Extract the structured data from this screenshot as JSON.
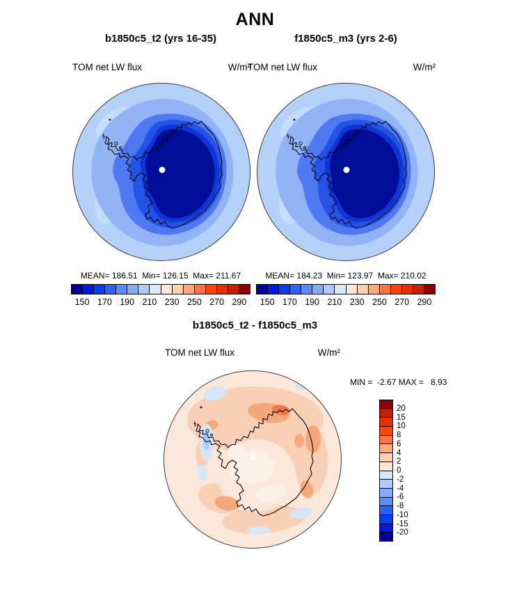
{
  "title": "ANN",
  "panels": [
    {
      "subtitle": "b1850c5_t2 (yrs 16-35)",
      "variable": "TOM net LW flux",
      "units": "W/m²",
      "stats": "MEAN= 186.51  Min= 126.15  Max= 211.67"
    },
    {
      "subtitle": "f1850c5_m3 (yrs 2-6)",
      "variable": "TOM net LW flux",
      "units": "W/m²",
      "stats": "MEAN= 184.23  Min= 123.97  Max= 210.02"
    }
  ],
  "diff": {
    "title": "b1850c5_t2 - f1850c5_m3",
    "variable": "TOM net LW flux",
    "units": "W/m²",
    "minmax": "MIN =  -2.67 MAX =   8.93"
  },
  "colorbar": {
    "orientation": "horizontal",
    "tick_labels": [
      "150",
      "170",
      "190",
      "210",
      "230",
      "250",
      "270",
      "290"
    ],
    "colors": [
      "#000099",
      "#0018E0",
      "#0040F0",
      "#2963FF",
      "#5C8AFF",
      "#85ABFF",
      "#ADCBFF",
      "#D8E8FF",
      "#FFE8D8",
      "#FFD0B0",
      "#FFA878",
      "#FF7245",
      "#FF4500",
      "#E63000",
      "#C22000",
      "#8C0000"
    ]
  },
  "diff_colorbar": {
    "orientation": "vertical",
    "tick_labels": [
      "20",
      "15",
      "10",
      "8",
      "6",
      "4",
      "2",
      "0",
      "-2",
      "-4",
      "-6",
      "-8",
      "-10",
      "-15",
      "-20"
    ]
  },
  "chart_data": [
    {
      "type": "heatmap",
      "subtype": "filled-contour-map",
      "projection": "south polar stereographic (Antarctica)",
      "title": "b1850c5_t2 (yrs 16-35)",
      "variable": "TOM net LW flux",
      "units": "W/m²",
      "stats": {
        "mean": 186.51,
        "min": 126.15,
        "max": 211.67
      },
      "contour_levels": [
        150,
        160,
        170,
        180,
        190,
        200,
        210,
        220,
        230,
        240,
        250,
        260,
        270,
        280,
        290
      ],
      "tick_labels": [
        150,
        170,
        190,
        210,
        230,
        250,
        270,
        290
      ],
      "palette": "blue-to-red, 16 levels",
      "legend_position": "below",
      "notes": "Low values (dark blue, ~130-170) over the Antarctic interior; higher values (light blue, ~210) over surrounding ocean; white dot marks the South Pole."
    },
    {
      "type": "heatmap",
      "subtype": "filled-contour-map",
      "projection": "south polar stereographic (Antarctica)",
      "title": "f1850c5_m3 (yrs 2-6)",
      "variable": "TOM net LW flux",
      "units": "W/m²",
      "stats": {
        "mean": 184.23,
        "min": 123.97,
        "max": 210.02
      },
      "contour_levels": [
        150,
        160,
        170,
        180,
        190,
        200,
        210,
        220,
        230,
        240,
        250,
        260,
        270,
        280,
        290
      ],
      "tick_labels": [
        150,
        170,
        190,
        210,
        230,
        250,
        270,
        290
      ],
      "palette": "blue-to-red, 16 levels",
      "legend_position": "below",
      "notes": "Pattern nearly identical to first panel."
    },
    {
      "type": "heatmap",
      "subtype": "filled-contour-difference-map",
      "projection": "south polar stereographic (Antarctica)",
      "title": "b1850c5_t2 - f1850c5_m3",
      "variable": "TOM net LW flux",
      "units": "W/m²",
      "stats": {
        "min": -2.67,
        "max": 8.93
      },
      "contour_levels": [
        -20,
        -15,
        -10,
        -8,
        -6,
        -4,
        -2,
        0,
        2,
        4,
        6,
        8,
        10,
        15,
        20
      ],
      "palette": "blue-to-red, 16 levels",
      "legend_position": "right",
      "notes": "Mostly weak positive differences (0 to +6, peach/orange) with strongest positives north of the coast; small negative patches (0 to -4, light blue) west of the Antarctic Peninsula."
    }
  ]
}
